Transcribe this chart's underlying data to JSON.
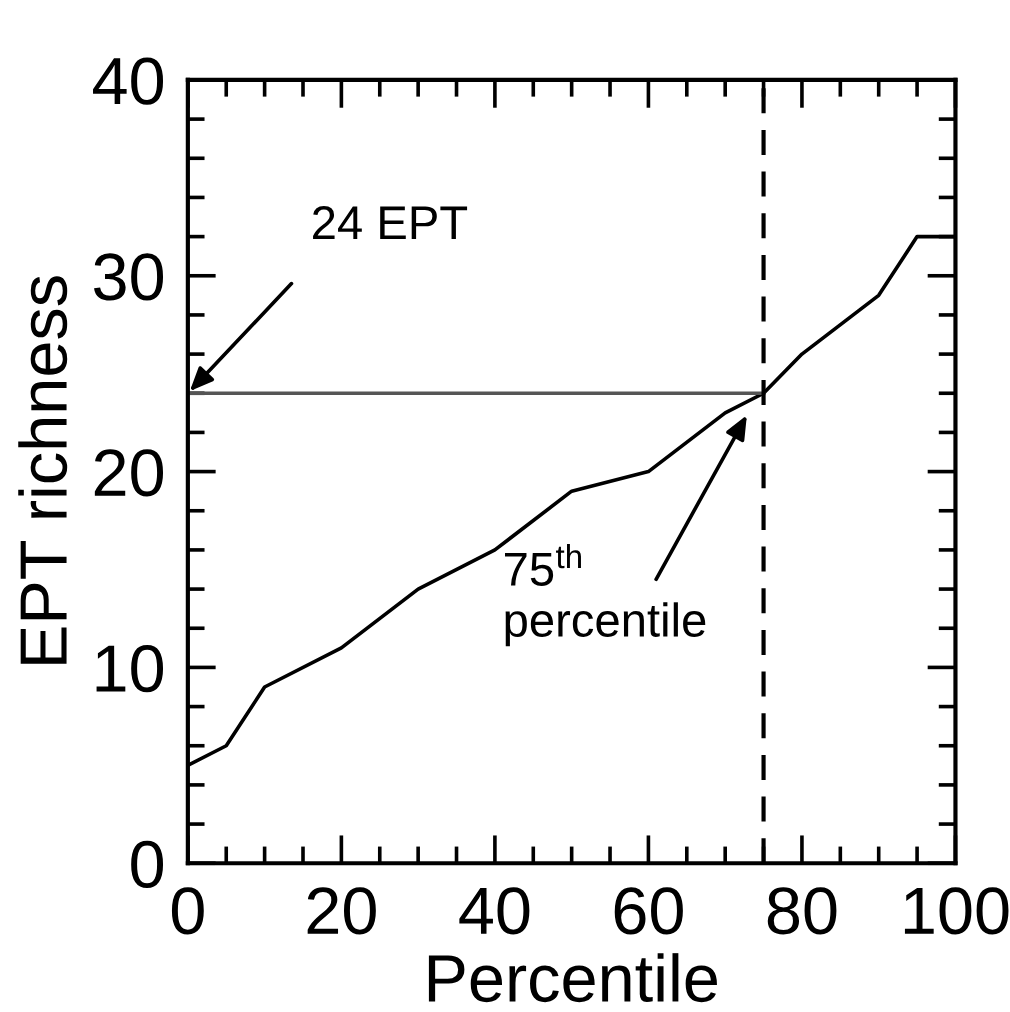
{
  "chart_data": {
    "type": "line",
    "xlabel": "Percentile",
    "ylabel": "EPT richness",
    "xlim": [
      0,
      100
    ],
    "ylim": [
      0,
      40
    ],
    "xticks": [
      0,
      {
        "value": 5,
        "label": null
      },
      {
        "value": 10,
        "label": null
      },
      {
        "value": 15,
        "label": null
      },
      20,
      {
        "value": 25,
        "label": null
      },
      {
        "value": 30,
        "label": null
      },
      {
        "value": 35,
        "label": null
      },
      40,
      {
        "value": 45,
        "label": null
      },
      {
        "value": 50,
        "label": null
      },
      {
        "value": 55,
        "label": null
      },
      60,
      {
        "value": 65,
        "label": null
      },
      {
        "value": 70,
        "label": null
      },
      {
        "value": 75,
        "label": null
      },
      80,
      {
        "value": 85,
        "label": null
      },
      {
        "value": 90,
        "label": null
      },
      {
        "value": 95,
        "label": null
      },
      100
    ],
    "yticks": [
      0,
      {
        "value": 2,
        "label": null
      },
      {
        "value": 4,
        "label": null
      },
      {
        "value": 6,
        "label": null
      },
      {
        "value": 8,
        "label": null
      },
      10,
      {
        "value": 12,
        "label": null
      },
      {
        "value": 14,
        "label": null
      },
      {
        "value": 16,
        "label": null
      },
      {
        "value": 18,
        "label": null
      },
      20,
      {
        "value": 22,
        "label": null
      },
      {
        "value": 24,
        "label": null
      },
      {
        "value": 26,
        "label": null
      },
      {
        "value": 28,
        "label": null
      },
      30,
      {
        "value": 32,
        "label": null
      },
      {
        "value": 34,
        "label": null
      },
      {
        "value": 36,
        "label": null
      },
      {
        "value": 38,
        "label": null
      },
      40
    ],
    "grid": false,
    "legend": false,
    "marker": "none",
    "series": [
      {
        "color": "#000000",
        "line_style": "solid",
        "x": [
          0,
          5,
          10,
          20,
          30,
          40,
          50,
          60,
          70,
          75,
          80,
          90,
          95,
          100
        ],
        "values": [
          5,
          6,
          9,
          11,
          14,
          16,
          19,
          20,
          23,
          24,
          26,
          29,
          32,
          32
        ]
      },
      {
        "color": "#555555",
        "line_style": "solid",
        "x": [
          0,
          75
        ],
        "values": [
          24,
          24
        ]
      }
    ],
    "ref_lines": [
      {
        "axis": "x",
        "value": 75,
        "label": null,
        "color": "#000000",
        "line_style": "dashed"
      }
    ],
    "annotations": [
      {
        "text": "24 EPT",
        "x": 0,
        "y": 24
      },
      {
        "text": "75$^{th}$\npercentile",
        "x": 73,
        "y": 23
      }
    ]
  }
}
